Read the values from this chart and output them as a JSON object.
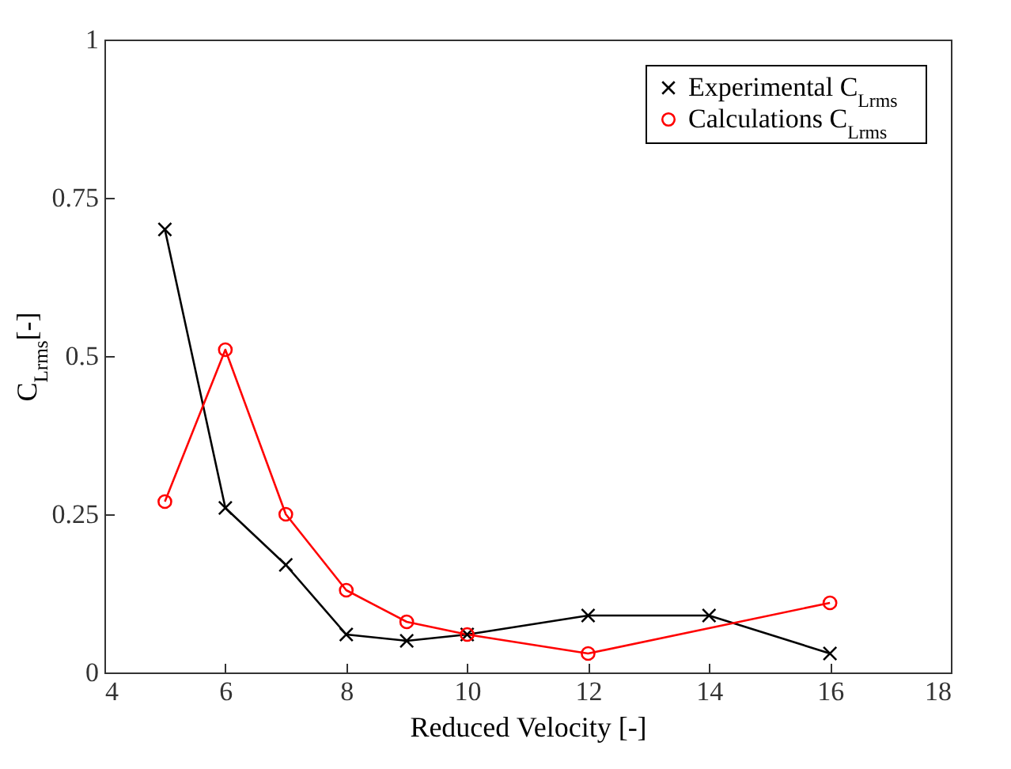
{
  "chart_data": {
    "type": "line",
    "xlabel": "Reduced Velocity [-]",
    "ylabel": "C$_{Lrms}$[-]",
    "xlim": [
      4,
      18
    ],
    "xticks": [
      4,
      6,
      8,
      10,
      12,
      14,
      16,
      18
    ],
    "ylim": [
      0,
      1
    ],
    "yticks": [
      0,
      {
        "value": 0.25,
        "label": "0.25"
      },
      {
        "value": 0.5,
        "label": "0.5"
      },
      {
        "value": 0.75,
        "label": "0.75"
      },
      1
    ],
    "grid": false,
    "legend": "top right",
    "line_style": "solid",
    "series": [
      {
        "name": "Experimental C$_{Lrms}$",
        "color": "#000000",
        "marker": "cross",
        "x": [
          5,
          6,
          7,
          8,
          9,
          10,
          12,
          14,
          16
        ],
        "values": [
          0.7,
          0.26,
          0.17,
          0.06,
          0.05,
          0.06,
          0.09,
          0.09,
          0.03
        ]
      },
      {
        "name": "Calculations C$_{Lrms}$",
        "color": "#ff0000",
        "marker": "circle",
        "x": [
          5,
          6,
          7,
          8,
          9,
          10,
          12,
          16
        ],
        "values": [
          0.27,
          0.51,
          0.25,
          0.13,
          0.08,
          0.06,
          0.03,
          0.11
        ]
      }
    ]
  }
}
